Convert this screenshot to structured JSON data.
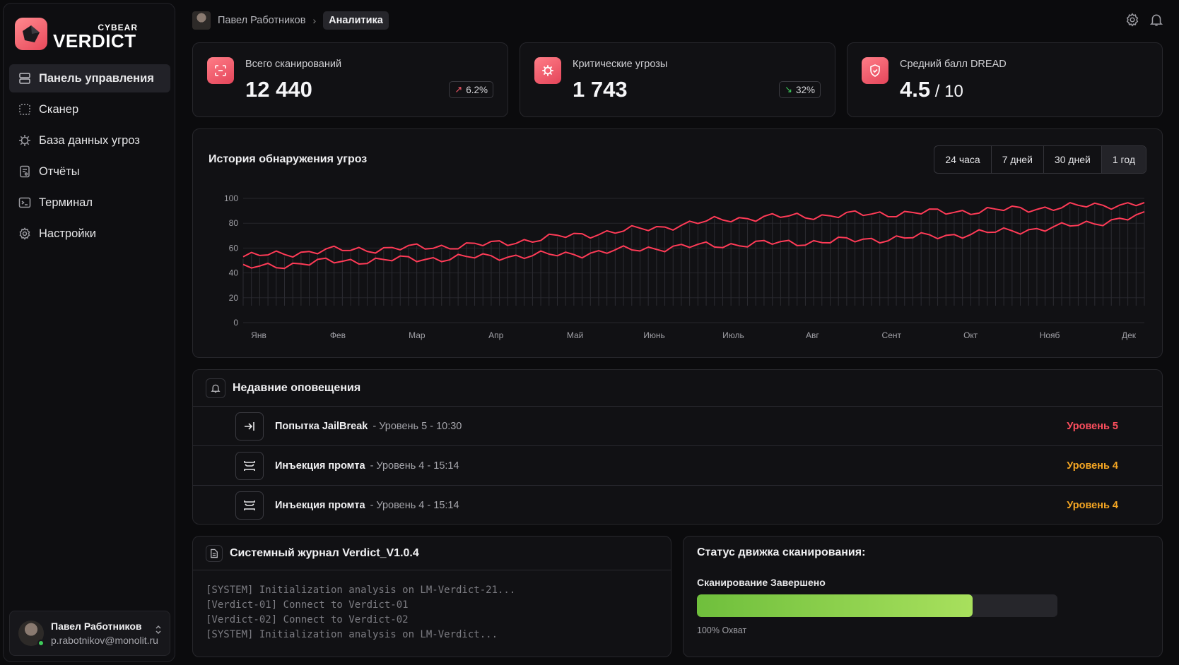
{
  "brand": {
    "small": "CYBEAR",
    "big": "VERDICT"
  },
  "sidebar": {
    "items": [
      {
        "label": "Панель управления",
        "icon": "dashboard-icon",
        "active": true
      },
      {
        "label": "Сканер",
        "icon": "scan-icon"
      },
      {
        "label": "База данных угроз",
        "icon": "virus-icon"
      },
      {
        "label": "Отчёты",
        "icon": "report-icon"
      },
      {
        "label": "Терминал",
        "icon": "terminal-icon"
      },
      {
        "label": "Настройки",
        "icon": "gear-icon"
      }
    ]
  },
  "user": {
    "name": "Павел Работников",
    "email": "p.rabotnikov@monolit.ru"
  },
  "breadcrumb": {
    "user": "Павел Работников",
    "current": "Аналитика"
  },
  "stats": [
    {
      "label": "Всего сканирований",
      "value": "12 440",
      "badge": "6.2%",
      "badge_icon": "arrow-up-right-icon",
      "badge_color": "#ff5a6a"
    },
    {
      "label": "Критические угрозы",
      "value": "1 743",
      "badge": "32%",
      "badge_icon": "arrow-down-right-icon",
      "badge_color": "#3ecb5a"
    },
    {
      "label": "Средний балл DREAD",
      "value": "4.5",
      "suffix": " / 10"
    }
  ],
  "chart": {
    "title": "История обнаружения угроз",
    "ranges": [
      "24 часа",
      "7 дней",
      "30 дней",
      "1 год"
    ],
    "selected_range": "1 год"
  },
  "chart_data": {
    "type": "line",
    "x": [
      "Янв",
      "Фев",
      "Мар",
      "Апр",
      "Май",
      "Июнь",
      "Июль",
      "Авг",
      "Сент",
      "Окт",
      "Нояб",
      "Дек"
    ],
    "ylim": [
      0,
      100
    ],
    "yticks": [
      0,
      20,
      40,
      60,
      80,
      100
    ],
    "color": "#ff3b57",
    "series": [
      {
        "values": [
          53,
          58,
          60,
          63,
          70,
          76,
          84,
          86,
          88,
          90,
          93,
          96
        ]
      },
      {
        "values": [
          44,
          49,
          51,
          53,
          55,
          60,
          63,
          65,
          68,
          72,
          77,
          86
        ]
      }
    ]
  },
  "alerts": {
    "title": "Недавние оповещения",
    "items": [
      {
        "name": "Попытка JailBreak",
        "meta": "- Уровень 5 - 10:30",
        "level": "Уровень 5",
        "color": "#ff4f5e",
        "icon": "arrow-to-line-icon"
      },
      {
        "name": "Инъекция промта",
        "meta": "- Уровень 4 - 15:14",
        "level": "Уровень 4",
        "color": "#f5a623",
        "icon": "inject-icon"
      },
      {
        "name": "Инъекция промта",
        "meta": "- Уровень 4 - 15:14",
        "level": "Уровень 4",
        "color": "#f5a623",
        "icon": "inject-icon"
      }
    ]
  },
  "log": {
    "title": "Системный журнал Verdict_V1.0.4",
    "lines": [
      "[SYSTEM] Initialization analysis on LM-Verdict-21...",
      "[Verdict-01] Connect to Verdict-01",
      "[Verdict-02] Connect to Verdict-02",
      "[SYSTEM] Initialization analysis on LM-Verdict..."
    ]
  },
  "engine": {
    "title": "Статус движка сканирования:",
    "status": "Сканирование Завершено",
    "progress": 0.765,
    "coverage": "100% Охват"
  }
}
